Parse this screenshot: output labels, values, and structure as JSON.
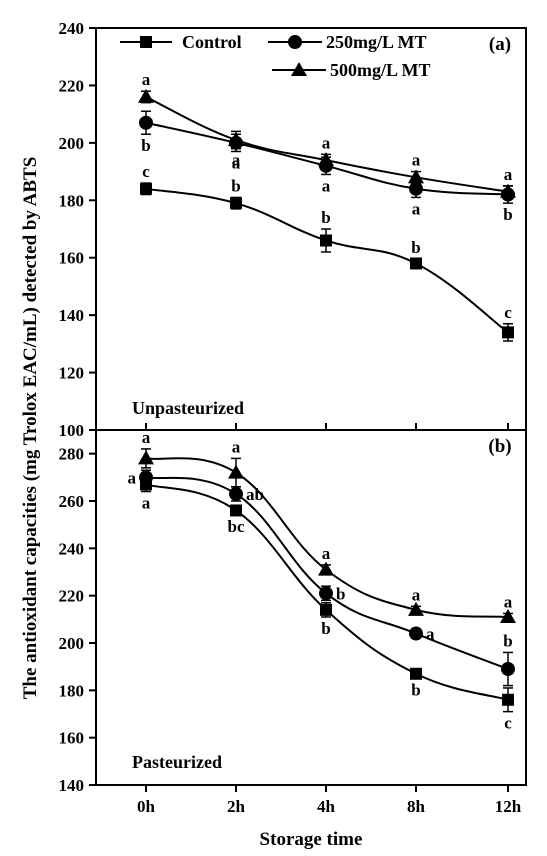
{
  "chart_data": [
    {
      "type": "line",
      "panel_label": "(a)",
      "note": "Unpasteurized",
      "categories": [
        "0h",
        "2h",
        "4h",
        "8h",
        "12h"
      ],
      "ylim": [
        100,
        240
      ],
      "yticks": [
        100,
        120,
        140,
        160,
        180,
        200,
        220,
        240
      ],
      "grid": false,
      "legend": {
        "placement": "top",
        "entries": [
          "Control",
          "250mg/L MT",
          "500mg/L MT"
        ]
      },
      "series": [
        {
          "name": "Control",
          "marker": "square",
          "values": [
            184,
            179,
            166,
            158,
            134
          ],
          "errors": [
            2,
            2,
            4,
            1.5,
            3
          ],
          "letters": [
            "c",
            "b",
            "b",
            "b",
            "c"
          ],
          "letter_side": [
            "above",
            "above",
            "above",
            "above",
            "above"
          ]
        },
        {
          "name": "250mg/L MT",
          "marker": "circle",
          "values": [
            207,
            200,
            192,
            184,
            182
          ],
          "errors": [
            4,
            3,
            3,
            3,
            3
          ],
          "letters": [
            "b",
            "a",
            "a",
            "a",
            "b"
          ],
          "letter_side": [
            "below",
            "below",
            "below",
            "below",
            "below"
          ]
        },
        {
          "name": "500mg/L MT",
          "marker": "triangle",
          "values": [
            216,
            201,
            194,
            188,
            183
          ],
          "errors": [
            2,
            3,
            2,
            2,
            2
          ],
          "letters": [
            "a",
            "a",
            "a",
            "a",
            "a"
          ],
          "letter_side": [
            "above",
            "below",
            "above",
            "above",
            "above"
          ]
        }
      ]
    },
    {
      "type": "line",
      "panel_label": "(b)",
      "note": "Pasteurized",
      "categories": [
        "0h",
        "2h",
        "4h",
        "8h",
        "12h"
      ],
      "ylim": [
        140,
        290
      ],
      "yticks": [
        140,
        160,
        180,
        200,
        220,
        240,
        260,
        280
      ],
      "grid": false,
      "xlabel": "Storage time",
      "series": [
        {
          "name": "Control",
          "marker": "square",
          "values": [
            267,
            256,
            214,
            187,
            176
          ],
          "errors": [
            3,
            2,
            3,
            2,
            5
          ],
          "letters": [
            "a",
            "bc",
            "b",
            "b",
            "c"
          ],
          "letter_side": [
            "below",
            "below",
            "below",
            "below",
            "below"
          ]
        },
        {
          "name": "250mg/L MT",
          "marker": "circle",
          "values": [
            270,
            263,
            221,
            204,
            189
          ],
          "errors": [
            3,
            3,
            3,
            2,
            7
          ],
          "letters": [
            "a",
            "ab",
            "b",
            "a",
            "b"
          ],
          "letter_side": [
            "left",
            "right",
            "right",
            "right",
            "above"
          ]
        },
        {
          "name": "500mg/L MT",
          "marker": "triangle",
          "values": [
            278,
            272,
            231,
            214,
            211
          ],
          "errors": [
            4,
            6,
            2,
            1.5,
            1.5
          ],
          "letters": [
            "a",
            "a",
            "a",
            "a",
            "a"
          ],
          "letter_side": [
            "above",
            "above",
            "above",
            "above",
            "above"
          ]
        }
      ]
    }
  ],
  "ylabel": "The antioxidant capacities (mg Trolox EAC/mL) detected by ABTS"
}
